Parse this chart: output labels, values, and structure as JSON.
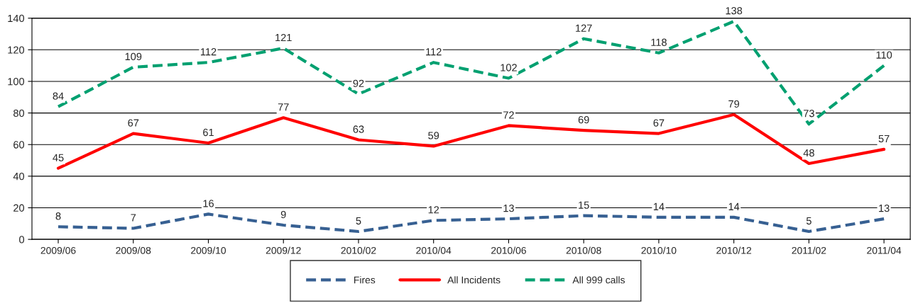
{
  "chart_data": {
    "type": "line",
    "categories": [
      "2009/06",
      "2009/08",
      "2009/10",
      "2009/12",
      "2010/02",
      "2010/04",
      "2010/06",
      "2010/08",
      "2010/10",
      "2010/12",
      "2011/02",
      "2011/04"
    ],
    "series": [
      {
        "name": "Fires",
        "color": "#376092",
        "line_style": "dashed",
        "values": [
          8,
          7,
          16,
          9,
          5,
          12,
          13,
          15,
          14,
          14,
          5,
          13
        ]
      },
      {
        "name": "All Incidents",
        "color": "#ff0000",
        "line_style": "solid",
        "values": [
          45,
          67,
          61,
          77,
          63,
          59,
          72,
          69,
          67,
          79,
          48,
          57
        ]
      },
      {
        "name": "All 999 calls",
        "color": "#00a070",
        "line_style": "dashed",
        "values": [
          84,
          109,
          112,
          121,
          92,
          112,
          102,
          127,
          118,
          138,
          73,
          110
        ]
      }
    ],
    "ylim": [
      0,
      140
    ],
    "yticks": [
      0,
      20,
      40,
      60,
      80,
      100,
      120,
      140
    ],
    "grid": "y",
    "legend": "bottom",
    "data_labels": true,
    "marker": "none"
  }
}
